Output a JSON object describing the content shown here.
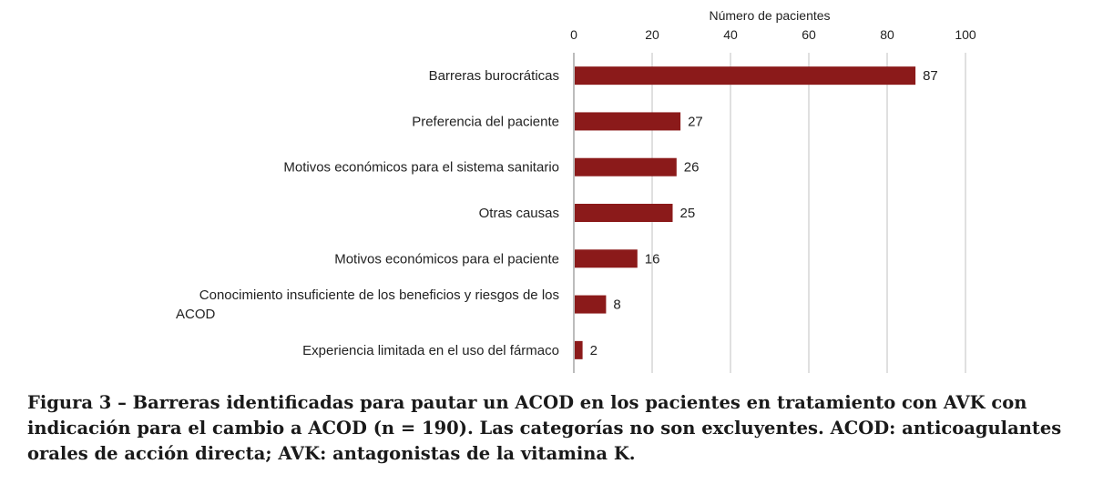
{
  "chart_data": {
    "type": "bar",
    "orientation": "horizontal",
    "xlabel": "Número de pacientes",
    "xlim": [
      0,
      100
    ],
    "xticks": [
      "0",
      "20",
      "40",
      "60",
      "80",
      "100"
    ],
    "grid": true,
    "bar_color": "#8b1a1a",
    "categories": [
      [
        "Barreras burocráticas"
      ],
      [
        "Preferencia del paciente"
      ],
      [
        "Motivos económicos para el sistema sanitario"
      ],
      [
        "Otras causas"
      ],
      [
        "Motivos económicos para el paciente"
      ],
      [
        "Conocimiento insuficiente de los beneficios y riesgos de los",
        "ACOD"
      ],
      [
        "Experiencia limitada en el uso del fármaco"
      ]
    ],
    "values": [
      87,
      27,
      26,
      25,
      16,
      8,
      2
    ]
  },
  "caption": "Figura 3 – Barreras identificadas para pautar un ACOD en los pacientes en tratamiento con AVK con indicación para el cambio a ACOD (n = 190). Las categorías no son excluyentes. ACOD: anticoagulantes orales de acción directa; AVK: antagonistas de la vitamina K."
}
